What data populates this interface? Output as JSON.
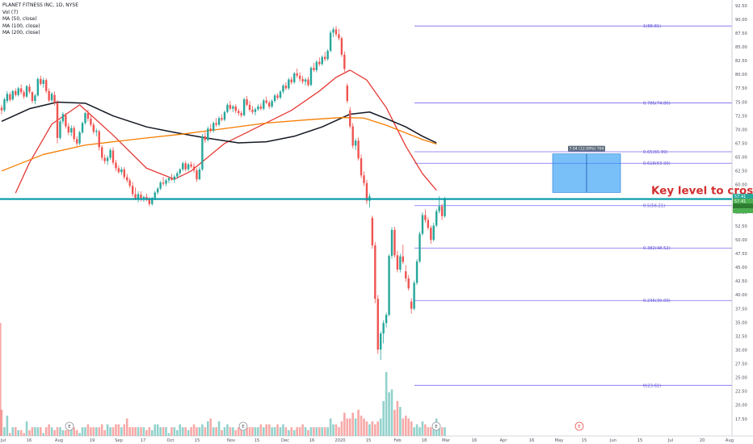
{
  "legend": {
    "title": "PLANET FITNESS INC, 1D, NYSE",
    "vol": "Vol (7)",
    "ma50": "MA (50, close)",
    "ma100": "MA (100, close)",
    "ma200": "MA (200, close)"
  },
  "chart_data": {
    "type": "candlestick",
    "title": "PLANET FITNESS INC, 1D, NYSE",
    "ylim": [
      16,
      93
    ],
    "y_ticks": [
      "92.50",
      "90.00",
      "87.50",
      "85.00",
      "82.50",
      "80.00",
      "77.50",
      "75.00",
      "72.50",
      "70.00",
      "67.50",
      "65.00",
      "62.50",
      "60.00",
      "57.50",
      "55.00",
      "52.50",
      "50.00",
      "47.50",
      "45.00",
      "42.50",
      "40.00",
      "37.50",
      "35.00",
      "32.50",
      "30.00",
      "27.50",
      "25.00",
      "22.50",
      "20.00",
      "17.50"
    ],
    "x_ticks": [
      "Jul",
      "16",
      "Aug",
      "19",
      "Sep",
      "17",
      "Oct",
      "15",
      "Nov",
      "15",
      "Dec",
      "16",
      "2020",
      "15",
      "Feb",
      "18",
      "Mar",
      "16",
      "Apr",
      "16",
      "May",
      "15",
      "Jun",
      "15",
      "Jul",
      "20",
      "Aug"
    ],
    "earnings_markers": [
      "E",
      "E",
      "E",
      "E"
    ],
    "fib_levels": [
      {
        "label": "1(88.81)",
        "value": 88.81
      },
      {
        "label": "0.786(74.86)",
        "value": 74.86
      },
      {
        "label": "0.65(65.99)",
        "value": 65.99
      },
      {
        "label": "0.618(63.90)",
        "value": 63.9
      },
      {
        "label": "0.5(56.21)",
        "value": 56.21
      },
      {
        "label": "0.382(48.52)",
        "value": 48.52
      },
      {
        "label": "0.236(39.00)",
        "value": 39.0
      },
      {
        "label": "0(23.61)",
        "value": 23.61
      }
    ],
    "key_level": {
      "value": 57.41,
      "label": "Key level to cross"
    },
    "measure_box": {
      "from": 58.6,
      "to": 65.6,
      "label": "7.04 (12.09%) 704"
    },
    "price_tags": [
      {
        "label": "57.41",
        "color": "#26a69a"
      },
      {
        "label": "57.41",
        "color": "#4caf50"
      },
      {
        "label": "",
        "color": "#2e7d32"
      },
      {
        "label": "",
        "color": "#4caf50"
      }
    ],
    "ma_series": [
      {
        "color": "#e53935",
        "points": [
          [
            0,
            null
          ],
          [
            5,
            58.5
          ],
          [
            10,
            64
          ],
          [
            18,
            71
          ],
          [
            28,
            74.5
          ],
          [
            40,
            69
          ],
          [
            52,
            63
          ],
          [
            62,
            61
          ],
          [
            68,
            62.5
          ],
          [
            80,
            67.5
          ],
          [
            92,
            70.5
          ],
          [
            104,
            73.5
          ],
          [
            114,
            77
          ],
          [
            120,
            79.5
          ],
          [
            125,
            80.8
          ],
          [
            131,
            79
          ],
          [
            138,
            74
          ],
          [
            145,
            67
          ],
          [
            151,
            62
          ],
          [
            156,
            59
          ]
        ]
      },
      {
        "color": "#131722",
        "points": [
          [
            0,
            71.5
          ],
          [
            10,
            73.8
          ],
          [
            20,
            75
          ],
          [
            30,
            74.8
          ],
          [
            40,
            72.5
          ],
          [
            52,
            70.5
          ],
          [
            62,
            69.5
          ],
          [
            72,
            68.6
          ],
          [
            85,
            67.6
          ],
          [
            95,
            67.8
          ],
          [
            105,
            68.8
          ],
          [
            115,
            70.5
          ],
          [
            125,
            72.8
          ],
          [
            132,
            73.2
          ],
          [
            138,
            72
          ],
          [
            145,
            70.5
          ],
          [
            151,
            68.8
          ],
          [
            156,
            67.6
          ]
        ]
      },
      {
        "color": "#f57c00",
        "points": [
          [
            0,
            62.5
          ],
          [
            15,
            65.5
          ],
          [
            30,
            67.2
          ],
          [
            40,
            67.8
          ],
          [
            52,
            68.5
          ],
          [
            65,
            69.2
          ],
          [
            80,
            70.2
          ],
          [
            95,
            71.2
          ],
          [
            110,
            71.8
          ],
          [
            122,
            72.2
          ],
          [
            130,
            72.1
          ],
          [
            138,
            70.8
          ],
          [
            145,
            69.4
          ],
          [
            151,
            68.2
          ],
          [
            156,
            67.4
          ]
        ]
      }
    ],
    "candles": [
      [
        74,
        74.5,
        72.8,
        73.5
      ],
      [
        73.5,
        75.8,
        73.2,
        75.5
      ],
      [
        75.2,
        77,
        74.8,
        76.5
      ],
      [
        76.4,
        76.8,
        75.1,
        75.4
      ],
      [
        75.5,
        77.2,
        75.2,
        77
      ],
      [
        77,
        77.5,
        76,
        76.3
      ],
      [
        76.3,
        77.8,
        76,
        77.5
      ],
      [
        77.5,
        78.2,
        76.4,
        76.8
      ],
      [
        76.8,
        77.2,
        75.6,
        76
      ],
      [
        76,
        78.1,
        75.8,
        77.9
      ],
      [
        77.8,
        78.3,
        76.5,
        76.9
      ],
      [
        76.8,
        77,
        74.8,
        75.2
      ],
      [
        75.2,
        76.5,
        74.6,
        76.2
      ],
      [
        76.2,
        79.5,
        76,
        79.2
      ],
      [
        79.2,
        79.8,
        78,
        78.3
      ],
      [
        78.3,
        79.4,
        77.6,
        79
      ],
      [
        79,
        79.3,
        76.6,
        77
      ],
      [
        77,
        77.5,
        75,
        75.3
      ],
      [
        75.3,
        76.8,
        75,
        76.5
      ],
      [
        76.3,
        76.9,
        74.4,
        74.9
      ],
      [
        74.9,
        75.4,
        67.5,
        68.5
      ],
      [
        68.5,
        71.8,
        68.2,
        71.5
      ],
      [
        71.5,
        73.2,
        71,
        72.8
      ],
      [
        72.6,
        73,
        70.2,
        70.6
      ],
      [
        70.6,
        71.2,
        69,
        69.5
      ],
      [
        69.5,
        70.8,
        68.8,
        70.3
      ],
      [
        70.3,
        70.7,
        67.8,
        68.3
      ],
      [
        68.3,
        68.8,
        67,
        67.5
      ],
      [
        67.5,
        69.8,
        67.2,
        69.5
      ],
      [
        69.5,
        71.5,
        69.2,
        71.2
      ],
      [
        71.2,
        73.2,
        70.9,
        73
      ],
      [
        73,
        73.6,
        71.5,
        72
      ],
      [
        72,
        72.5,
        70.5,
        70.9
      ],
      [
        70.9,
        71.3,
        69.2,
        69.6
      ],
      [
        69.6,
        70.2,
        68.8,
        69.8
      ],
      [
        69.7,
        70,
        66.2,
        66.8
      ],
      [
        66.8,
        67.2,
        64.4,
        64.9
      ],
      [
        64.9,
        65.5,
        63.8,
        64.3
      ],
      [
        64.3,
        65.3,
        63.6,
        64.9
      ],
      [
        64.9,
        66.6,
        64.5,
        66.3
      ],
      [
        66.2,
        66.8,
        63.6,
        64
      ],
      [
        64,
        64.5,
        62.5,
        63
      ],
      [
        63,
        63.5,
        62,
        62.3
      ],
      [
        62.3,
        63.2,
        61.8,
        62.8
      ],
      [
        62.8,
        63.2,
        61,
        61.4
      ],
      [
        61.4,
        62,
        60.4,
        60.8
      ],
      [
        60.8,
        61.2,
        59.4,
        59.8
      ],
      [
        59.8,
        60.5,
        57.8,
        58.3
      ],
      [
        58.3,
        59.5,
        57.2,
        57.5
      ],
      [
        57.5,
        58.8,
        56.8,
        58.3
      ],
      [
        58.2,
        58.8,
        57,
        57.6
      ],
      [
        57.6,
        58,
        56.9,
        57.8
      ],
      [
        57.8,
        58.4,
        57,
        57.3
      ],
      [
        57.3,
        57.8,
        56.1,
        56.5
      ],
      [
        56.5,
        57.8,
        56.2,
        57.6
      ],
      [
        57.6,
        58.9,
        57.2,
        58.6
      ],
      [
        58.6,
        59.6,
        58.2,
        59.3
      ],
      [
        59.3,
        60.7,
        59,
        60.4
      ],
      [
        60.4,
        61.4,
        59.8,
        60.2
      ],
      [
        60.2,
        61.1,
        59.7,
        60.8
      ],
      [
        60.8,
        61.5,
        60.3,
        61.2
      ],
      [
        61.2,
        62,
        60.7,
        60.9
      ],
      [
        60.9,
        61.8,
        60.3,
        61.5
      ],
      [
        61.5,
        62.4,
        61.1,
        62.1
      ],
      [
        62.1,
        63,
        61.7,
        62.8
      ],
      [
        62.8,
        64.2,
        62.5,
        63.9
      ],
      [
        63.9,
        64.3,
        62.4,
        62.8
      ],
      [
        62.8,
        64,
        62.5,
        63.7
      ],
      [
        63.7,
        64.2,
        63,
        63.3
      ],
      [
        63.3,
        63.9,
        62.2,
        62.6
      ],
      [
        62.6,
        63,
        60.5,
        61
      ],
      [
        61,
        63.2,
        60.8,
        62.8
      ],
      [
        62.8,
        69.2,
        62.5,
        68.8
      ],
      [
        68.8,
        69.6,
        67.6,
        68.1
      ],
      [
        68.1,
        70.6,
        67.8,
        70.2
      ],
      [
        70.2,
        71,
        69.4,
        69.8
      ],
      [
        69.8,
        71.5,
        69.5,
        71.2
      ],
      [
        71.2,
        72.1,
        70.5,
        70.9
      ],
      [
        70.9,
        72.4,
        70.6,
        72.1
      ],
      [
        72.1,
        72.8,
        71.5,
        71.8
      ],
      [
        71.8,
        73.5,
        71.5,
        73.2
      ],
      [
        73.2,
        74.8,
        73,
        74.5
      ],
      [
        74.5,
        75.2,
        73.5,
        73.8
      ],
      [
        73.8,
        74.5,
        73.2,
        74.2
      ],
      [
        74.2,
        74.6,
        73,
        73.4
      ],
      [
        73.4,
        73.8,
        72.5,
        73
      ],
      [
        73,
        73.4,
        72.2,
        72.6
      ],
      [
        72.6,
        75.8,
        72.4,
        75.5
      ],
      [
        75.5,
        76.1,
        74.2,
        74.5
      ],
      [
        74.5,
        75.2,
        73.2,
        73.6
      ],
      [
        73.6,
        74.3,
        72.8,
        73.2
      ],
      [
        73.2,
        74,
        72.6,
        73.7
      ],
      [
        73.7,
        74.6,
        73.4,
        74.2
      ],
      [
        74.2,
        74.8,
        73.5,
        73.8
      ],
      [
        73.8,
        75.6,
        73.5,
        75.3
      ],
      [
        75.3,
        76,
        74.6,
        74.9
      ],
      [
        74.9,
        75.3,
        73.8,
        74.2
      ],
      [
        74.2,
        75.5,
        73.9,
        75.2
      ],
      [
        75.2,
        76.5,
        74.9,
        76.2
      ],
      [
        76.2,
        76.6,
        75.4,
        75.8
      ],
      [
        75.8,
        77.2,
        75.5,
        76.9
      ],
      [
        76.9,
        78.3,
        76.5,
        78
      ],
      [
        78,
        78.6,
        77.2,
        77.5
      ],
      [
        77.5,
        79.4,
        77.2,
        79.1
      ],
      [
        79.1,
        79.6,
        78.2,
        78.6
      ],
      [
        78.6,
        80.5,
        78.3,
        80.2
      ],
      [
        80.2,
        81.1,
        79.4,
        79.8
      ],
      [
        79.8,
        80.4,
        78.7,
        79.2
      ],
      [
        79.2,
        79.8,
        78.3,
        78.7
      ],
      [
        78.7,
        79.4,
        78,
        79.1
      ],
      [
        79.1,
        79.6,
        77.8,
        78.1
      ],
      [
        78.1,
        81.5,
        77.9,
        81.2
      ],
      [
        81.2,
        82.1,
        80.5,
        80.8
      ],
      [
        80.8,
        82.6,
        80.4,
        82.3
      ],
      [
        82.3,
        83.1,
        81.5,
        81.9
      ],
      [
        81.9,
        83.5,
        81.6,
        83.2
      ],
      [
        83.2,
        84.1,
        82.4,
        82.8
      ],
      [
        82.8,
        84.6,
        82.5,
        84.3
      ],
      [
        84.3,
        88,
        84,
        87.6
      ],
      [
        87.6,
        88.6,
        86.8,
        88.2
      ],
      [
        88.2,
        88.8,
        86.9,
        87.3
      ],
      [
        87.3,
        88.3,
        86.2,
        86.6
      ],
      [
        86.6,
        86.9,
        83.2,
        83.6
      ],
      [
        83.6,
        84.2,
        80.5,
        81
      ],
      [
        78,
        78.4,
        74.8,
        75.2
      ],
      [
        73.5,
        74.1,
        70.2,
        70.6
      ],
      [
        70.6,
        71.2,
        66.6,
        67.1
      ],
      [
        67.1,
        68.4,
        66.3,
        68
      ],
      [
        68,
        68.6,
        64.4,
        64.8
      ],
      [
        64.8,
        65.5,
        61.2,
        61.7
      ],
      [
        61.7,
        62.4,
        59.8,
        60.3
      ],
      [
        60.3,
        60.9,
        56.5,
        57.1
      ],
      [
        57.1,
        58.4,
        55.9,
        57.9
      ],
      [
        54,
        54.4,
        48.4,
        49
      ],
      [
        49,
        49.6,
        38.5,
        39.3
      ],
      [
        39.3,
        40,
        29.3,
        30.1
      ],
      [
        30.1,
        33.4,
        28.2,
        33
      ],
      [
        33,
        35.4,
        31.2,
        34.9
      ],
      [
        34.9,
        36.8,
        34.1,
        36.4
      ],
      [
        36.4,
        47.4,
        36.1,
        47.1
      ],
      [
        47.1,
        52.3,
        46.6,
        51.8
      ],
      [
        51.8,
        52.4,
        46.8,
        47.2
      ],
      [
        47.2,
        48,
        44.1,
        44.6
      ],
      [
        44.6,
        47.5,
        44.1,
        47
      ],
      [
        47,
        49.1,
        45.6,
        46
      ],
      [
        44.3,
        45.4,
        42.4,
        43
      ],
      [
        43,
        43.6,
        40.8,
        41.2
      ],
      [
        38.8,
        39.4,
        36.6,
        37.5
      ],
      [
        37.5,
        42.6,
        37.2,
        42.2
      ],
      [
        42.2,
        46.5,
        41.8,
        46.1
      ],
      [
        46.1,
        51.5,
        45.8,
        51.1
      ],
      [
        51.1,
        55,
        50.8,
        54.5
      ],
      [
        54.5,
        55.5,
        53.1,
        53.6
      ],
      [
        53.6,
        54.1,
        51.8,
        52.2
      ],
      [
        52.2,
        52.6,
        49.3,
        50
      ],
      [
        50,
        53.1,
        49.7,
        52.6
      ],
      [
        52.6,
        55.6,
        52.3,
        55.2
      ],
      [
        55.2,
        57.9,
        54.8,
        56.1
      ],
      [
        56.1,
        56.5,
        53.6,
        54.3
      ],
      [
        54.3,
        57.8,
        54,
        57.4
      ]
    ],
    "volume": [
      9,
      3,
      7,
      1,
      3,
      3,
      2,
      2,
      1,
      5,
      2,
      3,
      3,
      3,
      3,
      1,
      3,
      4,
      3,
      2,
      3,
      3,
      2,
      2,
      3,
      3,
      3,
      2,
      1,
      3,
      3,
      4,
      3,
      3,
      3,
      3,
      4,
      2,
      4,
      3,
      3,
      4,
      4,
      3,
      4,
      6,
      3,
      3,
      3,
      3,
      3,
      3,
      2,
      3,
      2,
      4,
      4,
      3,
      3,
      3,
      1,
      3,
      3,
      2,
      4,
      3,
      3,
      2,
      3,
      4,
      3,
      3,
      4,
      3,
      5,
      6,
      3,
      3,
      5,
      2,
      3,
      4,
      3,
      3,
      2,
      3,
      3,
      3,
      3,
      3,
      3,
      3,
      3,
      4,
      3,
      4,
      4,
      3,
      3,
      4,
      3,
      4,
      3,
      2,
      3,
      2,
      3,
      3,
      4,
      3,
      2,
      3,
      3,
      3,
      3,
      3,
      3,
      3,
      6,
      4,
      4,
      3,
      5,
      8,
      6,
      6,
      8,
      6,
      9,
      7,
      6,
      5,
      4,
      5,
      4,
      5,
      6,
      12,
      22,
      15,
      16,
      9,
      12,
      10,
      6,
      7,
      6,
      5,
      3,
      4,
      3,
      5,
      4,
      3,
      3,
      4,
      6,
      4,
      3,
      3
    ]
  }
}
